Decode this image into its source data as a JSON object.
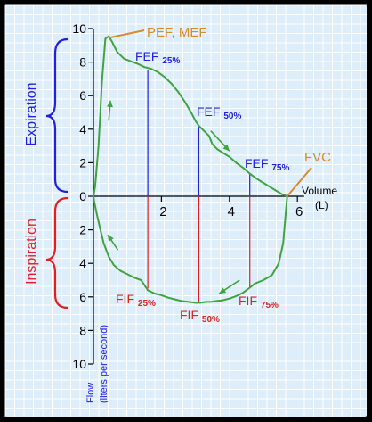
{
  "chart_data": {
    "type": "line",
    "title": "",
    "xlabel": "Volume (L)",
    "xlabel_parts": [
      "Volume",
      "(L)"
    ],
    "ylabel_parts": [
      "Flow",
      "(liters per second)"
    ],
    "x_ticks": [
      "2",
      "4",
      "6"
    ],
    "y_ticks": [
      "10",
      "8",
      "6",
      "4",
      "2",
      "0",
      "2",
      "4",
      "6",
      "8",
      "10"
    ],
    "xlim": [
      0,
      6
    ],
    "ylim": [
      -10,
      10
    ],
    "y_tick_values": [
      10,
      8,
      6,
      4,
      2,
      0,
      -2,
      -4,
      -6,
      -8,
      -10
    ],
    "x_tick_values": [
      2,
      4,
      6
    ],
    "grid": true,
    "background_color": "#ddeefa",
    "grid_color": "#ffffff",
    "curve_color": "#3fa33f",
    "expiration_color": "#2020e0",
    "inspiration_color": "#e02020",
    "annotation_color": "#d98a2b",
    "expiration_label": "Expiration",
    "inspiration_label": "Inspiration",
    "series": [
      {
        "name": "",
        "segment": "expiration",
        "x": [
          0,
          0.05,
          0.15,
          0.25,
          0.35,
          0.45,
          0.55,
          0.7,
          0.9,
          1.1,
          1.3,
          1.5,
          1.7,
          1.9,
          2.1,
          2.3,
          2.5,
          2.7,
          2.9,
          3.0,
          3.1,
          3.25,
          3.4,
          3.5,
          3.65,
          3.8,
          4.0,
          4.2,
          4.4,
          4.6,
          4.8,
          5.0,
          5.2,
          5.4,
          5.55,
          5.7
        ],
        "y": [
          0,
          0.6,
          3.0,
          6.8,
          9.4,
          9.55,
          9.2,
          8.6,
          8.2,
          8.05,
          7.9,
          7.7,
          7.6,
          7.4,
          7.1,
          6.7,
          6.2,
          5.6,
          4.9,
          4.5,
          4.2,
          3.9,
          3.6,
          3.1,
          2.8,
          2.6,
          2.35,
          2.0,
          1.7,
          1.35,
          1.05,
          0.8,
          0.55,
          0.3,
          0.12,
          0
        ]
      },
      {
        "name": "",
        "segment": "inspiration",
        "x": [
          5.7,
          5.65,
          5.58,
          5.45,
          5.25,
          5.0,
          4.75,
          4.6,
          4.4,
          4.2,
          4.0,
          3.8,
          3.6,
          3.45,
          3.3,
          3.15,
          3.0,
          2.8,
          2.6,
          2.4,
          2.2,
          2.0,
          1.8,
          1.6,
          1.5,
          1.4,
          1.2,
          1.0,
          0.8,
          0.6,
          0.45,
          0.3,
          0.18,
          0.08,
          0.02,
          0
        ],
        "y": [
          0,
          -1.2,
          -2.8,
          -4.0,
          -4.7,
          -5.0,
          -5.2,
          -5.45,
          -5.75,
          -5.95,
          -6.1,
          -6.2,
          -6.25,
          -6.3,
          -6.3,
          -6.35,
          -6.35,
          -6.3,
          -6.25,
          -6.15,
          -6.05,
          -5.9,
          -5.8,
          -5.6,
          -5.3,
          -5.0,
          -4.85,
          -4.65,
          -4.45,
          -4.1,
          -3.6,
          -2.8,
          -1.8,
          -0.9,
          -0.3,
          0
        ]
      }
    ],
    "markers": [
      {
        "label": "FEF",
        "sub": "25%",
        "x": 1.6,
        "y": 7.5,
        "segment": "expiration"
      },
      {
        "label": "FEF",
        "sub": "50%",
        "x": 3.1,
        "y": 4.2,
        "segment": "expiration"
      },
      {
        "label": "FEF",
        "sub": "75%",
        "x": 4.6,
        "y": 1.3,
        "segment": "expiration"
      },
      {
        "label": "FIF",
        "sub": "25%",
        "x": 1.6,
        "y": -5.5,
        "segment": "inspiration"
      },
      {
        "label": "FIF",
        "sub": "50%",
        "x": 3.1,
        "y": -6.35,
        "segment": "inspiration"
      },
      {
        "label": "FIF",
        "sub": "75%",
        "x": 4.6,
        "y": -5.45,
        "segment": "inspiration"
      }
    ],
    "annotations": [
      {
        "text": "PEF, MEF",
        "target_x": 0.4,
        "target_y": 9.5
      },
      {
        "text": "FVC",
        "target_x": 5.7,
        "target_y": 0
      }
    ]
  }
}
